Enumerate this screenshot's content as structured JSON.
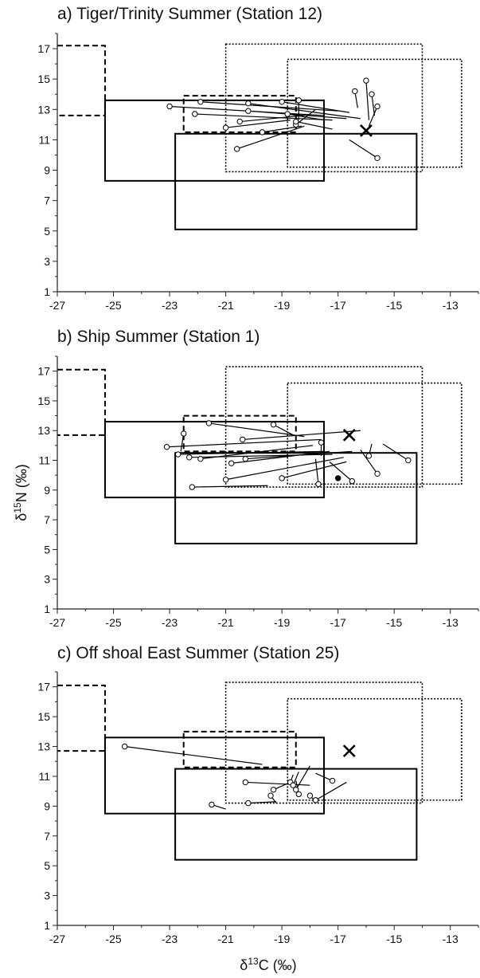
{
  "ylabel_main": "δ",
  "ylabel_sup": "15",
  "ylabel_rest": "N (‰)",
  "xlabel_main": "δ",
  "xlabel_sup": "13",
  "xlabel_rest": "C (‰)",
  "chart_data": [
    {
      "type": "scatter",
      "title": "a) Tiger/Trinity Summer (Station 12)",
      "xlim": [
        -27,
        -12
      ],
      "ylim": [
        1,
        18
      ],
      "x_ticks": [
        "-27",
        "-25",
        "-23",
        "-21",
        "-19",
        "-17",
        "-15",
        "-13"
      ],
      "y_ticks": [
        "1",
        "3",
        "5",
        "7",
        "9",
        "11",
        "13",
        "15",
        "17"
      ],
      "boxes": [
        {
          "style": "solid",
          "x": [
            -25.3,
            -17.5
          ],
          "y": [
            8.3,
            13.6
          ]
        },
        {
          "style": "solid",
          "x": [
            -22.8,
            -14.2
          ],
          "y": [
            5.1,
            11.4
          ]
        },
        {
          "style": "dashed",
          "x": [
            -22.5,
            -18.5
          ],
          "y": [
            11.5,
            13.9
          ]
        },
        {
          "style": "dashed-step",
          "points": [
            [
              -27,
              17.2
            ],
            [
              -25.3,
              17.2
            ],
            [
              -25.3,
              12.6
            ],
            [
              -27,
              12.6
            ]
          ]
        },
        {
          "style": "dotted",
          "x": [
            -21.0,
            -14.0
          ],
          "y": [
            8.9,
            17.3
          ]
        },
        {
          "style": "dotted",
          "x": [
            -18.8,
            -12.6
          ],
          "y": [
            9.2,
            16.3
          ]
        }
      ],
      "points": [
        {
          "x": -23.0,
          "y": 13.2,
          "x2": -17.5,
          "y2": 12.6
        },
        {
          "x": -21.9,
          "y": 13.5,
          "x2": -17.0,
          "y2": 12.9
        },
        {
          "x": -22.1,
          "y": 12.7,
          "x2": -17.2,
          "y2": 12.3
        },
        {
          "x": -20.2,
          "y": 13.4,
          "x2": -16.2,
          "y2": 12.4
        },
        {
          "x": -19.0,
          "y": 13.5,
          "x2": -16.6,
          "y2": 12.8
        },
        {
          "x": -20.2,
          "y": 12.9,
          "x2": -16.7,
          "y2": 12.4
        },
        {
          "x": -18.8,
          "y": 12.7,
          "x2": -17.5,
          "y2": 12.3
        },
        {
          "x": -21.0,
          "y": 11.8,
          "x2": -18.7,
          "y2": 12.3
        },
        {
          "x": -20.5,
          "y": 12.2,
          "x2": -18.2,
          "y2": 12.6
        },
        {
          "x": -18.5,
          "y": 12.0,
          "x2": -17.8,
          "y2": 13.0
        },
        {
          "x": -18.5,
          "y": 12.2,
          "x2": -17.2,
          "y2": 11.7
        },
        {
          "x": -19.7,
          "y": 11.5,
          "x2": -18.3,
          "y2": 11.9
        },
        {
          "x": -20.6,
          "y": 10.4,
          "x2": -18.2,
          "y2": 11.9
        },
        {
          "x": -18.4,
          "y": 13.6,
          "x2": -18.4,
          "y2": 12.3
        },
        {
          "x": -16.4,
          "y": 14.2,
          "x2": -16.3,
          "y2": 13.1
        },
        {
          "x": -16.0,
          "y": 14.9,
          "x2": -15.9,
          "y2": 12.3
        },
        {
          "x": -15.8,
          "y": 14.0,
          "x2": -15.7,
          "y2": 12.6
        },
        {
          "x": -15.6,
          "y": 13.2,
          "x2": -15.9,
          "y2": 11.9
        },
        {
          "x": -15.6,
          "y": 9.8,
          "x2": -16.6,
          "y2": 11.0
        }
      ],
      "cross": {
        "x": -16.0,
        "y": 11.6
      }
    },
    {
      "type": "scatter",
      "title": "b) Ship Summer (Station 1)",
      "xlim": [
        -27,
        -12
      ],
      "ylim": [
        1,
        18
      ],
      "x_ticks": [
        "-27",
        "-25",
        "-23",
        "-21",
        "-19",
        "-17",
        "-15",
        "-13"
      ],
      "y_ticks": [
        "1",
        "3",
        "5",
        "7",
        "9",
        "11",
        "13",
        "15",
        "17"
      ],
      "boxes": [
        {
          "style": "solid",
          "x": [
            -25.3,
            -17.5
          ],
          "y": [
            8.5,
            13.6
          ]
        },
        {
          "style": "solid",
          "x": [
            -22.8,
            -14.2
          ],
          "y": [
            5.4,
            11.5
          ]
        },
        {
          "style": "dashed",
          "x": [
            -22.5,
            -18.5
          ],
          "y": [
            11.6,
            14.0
          ]
        },
        {
          "style": "dashed-step",
          "points": [
            [
              -27,
              17.1
            ],
            [
              -25.3,
              17.1
            ],
            [
              -25.3,
              12.7
            ],
            [
              -27,
              12.7
            ]
          ]
        },
        {
          "style": "dotted",
          "x": [
            -21.0,
            -14.0
          ],
          "y": [
            9.2,
            17.3
          ]
        },
        {
          "style": "dotted",
          "x": [
            -18.8,
            -12.6
          ],
          "y": [
            9.4,
            16.2
          ]
        }
      ],
      "points": [
        {
          "x": -23.1,
          "y": 11.9,
          "x2": -17.6,
          "y2": 12.4
        },
        {
          "x": -21.6,
          "y": 13.5,
          "x2": -18.2,
          "y2": 12.6
        },
        {
          "x": -22.5,
          "y": 12.8,
          "x2": -22.6,
          "y2": 11.6
        },
        {
          "x": -19.3,
          "y": 13.4,
          "x2": -18.6,
          "y2": 12.7
        },
        {
          "x": -20.4,
          "y": 12.4,
          "x2": -16.2,
          "y2": 13.0
        },
        {
          "x": -22.7,
          "y": 11.4,
          "x2": -17.5,
          "y2": 11.6
        },
        {
          "x": -22.3,
          "y": 11.2,
          "x2": -17.2,
          "y2": 11.4
        },
        {
          "x": -21.9,
          "y": 11.1,
          "x2": -17.9,
          "y2": 12.0
        },
        {
          "x": -20.3,
          "y": 11.1,
          "x2": -16.5,
          "y2": 11.6
        },
        {
          "x": -20.8,
          "y": 10.8,
          "x2": -17.3,
          "y2": 11.6
        },
        {
          "x": -21.0,
          "y": 9.7,
          "x2": -16.8,
          "y2": 11.2
        },
        {
          "x": -19.0,
          "y": 9.8,
          "x2": -16.7,
          "y2": 10.9
        },
        {
          "x": -22.2,
          "y": 9.2,
          "x2": -19.5,
          "y2": 9.3
        },
        {
          "x": -17.6,
          "y": 12.2,
          "x2": -17.6,
          "y2": 11.3
        },
        {
          "x": -17.7,
          "y": 9.4,
          "x2": -17.8,
          "y2": 11.1
        },
        {
          "x": -16.5,
          "y": 9.6,
          "x2": -17.3,
          "y2": 10.9
        },
        {
          "x": -15.9,
          "y": 11.3,
          "x2": -15.8,
          "y2": 12.1
        },
        {
          "x": -15.6,
          "y": 10.1,
          "x2": -16.2,
          "y2": 11.7
        },
        {
          "x": -14.5,
          "y": 11.0,
          "x2": -15.4,
          "y2": 12.1
        }
      ],
      "filled_point": {
        "x": -17.0,
        "y": 9.8
      },
      "cross": {
        "x": -16.6,
        "y": 12.7
      }
    },
    {
      "type": "scatter",
      "title": "c) Off shoal East Summer (Station 25)",
      "xlim": [
        -27,
        -12
      ],
      "ylim": [
        1,
        18
      ],
      "x_ticks": [
        "-27",
        "-25",
        "-23",
        "-21",
        "-19",
        "-17",
        "-15",
        "-13"
      ],
      "y_ticks": [
        "1",
        "3",
        "5",
        "7",
        "9",
        "11",
        "13",
        "15",
        "17"
      ],
      "boxes": [
        {
          "style": "solid",
          "x": [
            -25.3,
            -17.5
          ],
          "y": [
            8.5,
            13.6
          ]
        },
        {
          "style": "solid",
          "x": [
            -22.8,
            -14.2
          ],
          "y": [
            5.4,
            11.5
          ]
        },
        {
          "style": "dashed",
          "x": [
            -22.5,
            -18.5
          ],
          "y": [
            11.6,
            14.0
          ]
        },
        {
          "style": "dashed-step",
          "points": [
            [
              -27,
              17.1
            ],
            [
              -25.3,
              17.1
            ],
            [
              -25.3,
              12.7
            ],
            [
              -27,
              12.7
            ]
          ]
        },
        {
          "style": "dotted",
          "x": [
            -21.0,
            -14.0
          ],
          "y": [
            9.2,
            17.3
          ]
        },
        {
          "style": "dotted",
          "x": [
            -18.8,
            -12.6
          ],
          "y": [
            9.4,
            16.2
          ]
        }
      ],
      "points": [
        {
          "x": -24.6,
          "y": 13.0,
          "x2": -19.7,
          "y2": 11.8
        },
        {
          "x": -20.3,
          "y": 10.6,
          "x2": -18.0,
          "y2": 10.4
        },
        {
          "x": -18.7,
          "y": 10.6,
          "x2": -18.6,
          "y2": 11.1
        },
        {
          "x": -18.6,
          "y": 10.4,
          "x2": -18.4,
          "y2": 11.3
        },
        {
          "x": -19.3,
          "y": 10.1,
          "x2": -18.7,
          "y2": 10.6
        },
        {
          "x": -18.5,
          "y": 10.1,
          "x2": -18.0,
          "y2": 11.7
        },
        {
          "x": -19.4,
          "y": 9.7,
          "x2": -19.2,
          "y2": 9.2
        },
        {
          "x": -18.4,
          "y": 9.8,
          "x2": -18.5,
          "y2": 10.7
        },
        {
          "x": -18.0,
          "y": 9.7,
          "x2": -17.8,
          "y2": 9.3
        },
        {
          "x": -17.2,
          "y": 10.7,
          "x2": -17.8,
          "y2": 11.2
        },
        {
          "x": -17.8,
          "y": 9.4,
          "x2": -16.7,
          "y2": 10.6
        },
        {
          "x": -20.2,
          "y": 9.2,
          "x2": -19.2,
          "y2": 9.3
        },
        {
          "x": -21.5,
          "y": 9.1,
          "x2": -21.0,
          "y2": 8.8
        }
      ],
      "cross": {
        "x": -16.6,
        "y": 12.7
      }
    }
  ]
}
